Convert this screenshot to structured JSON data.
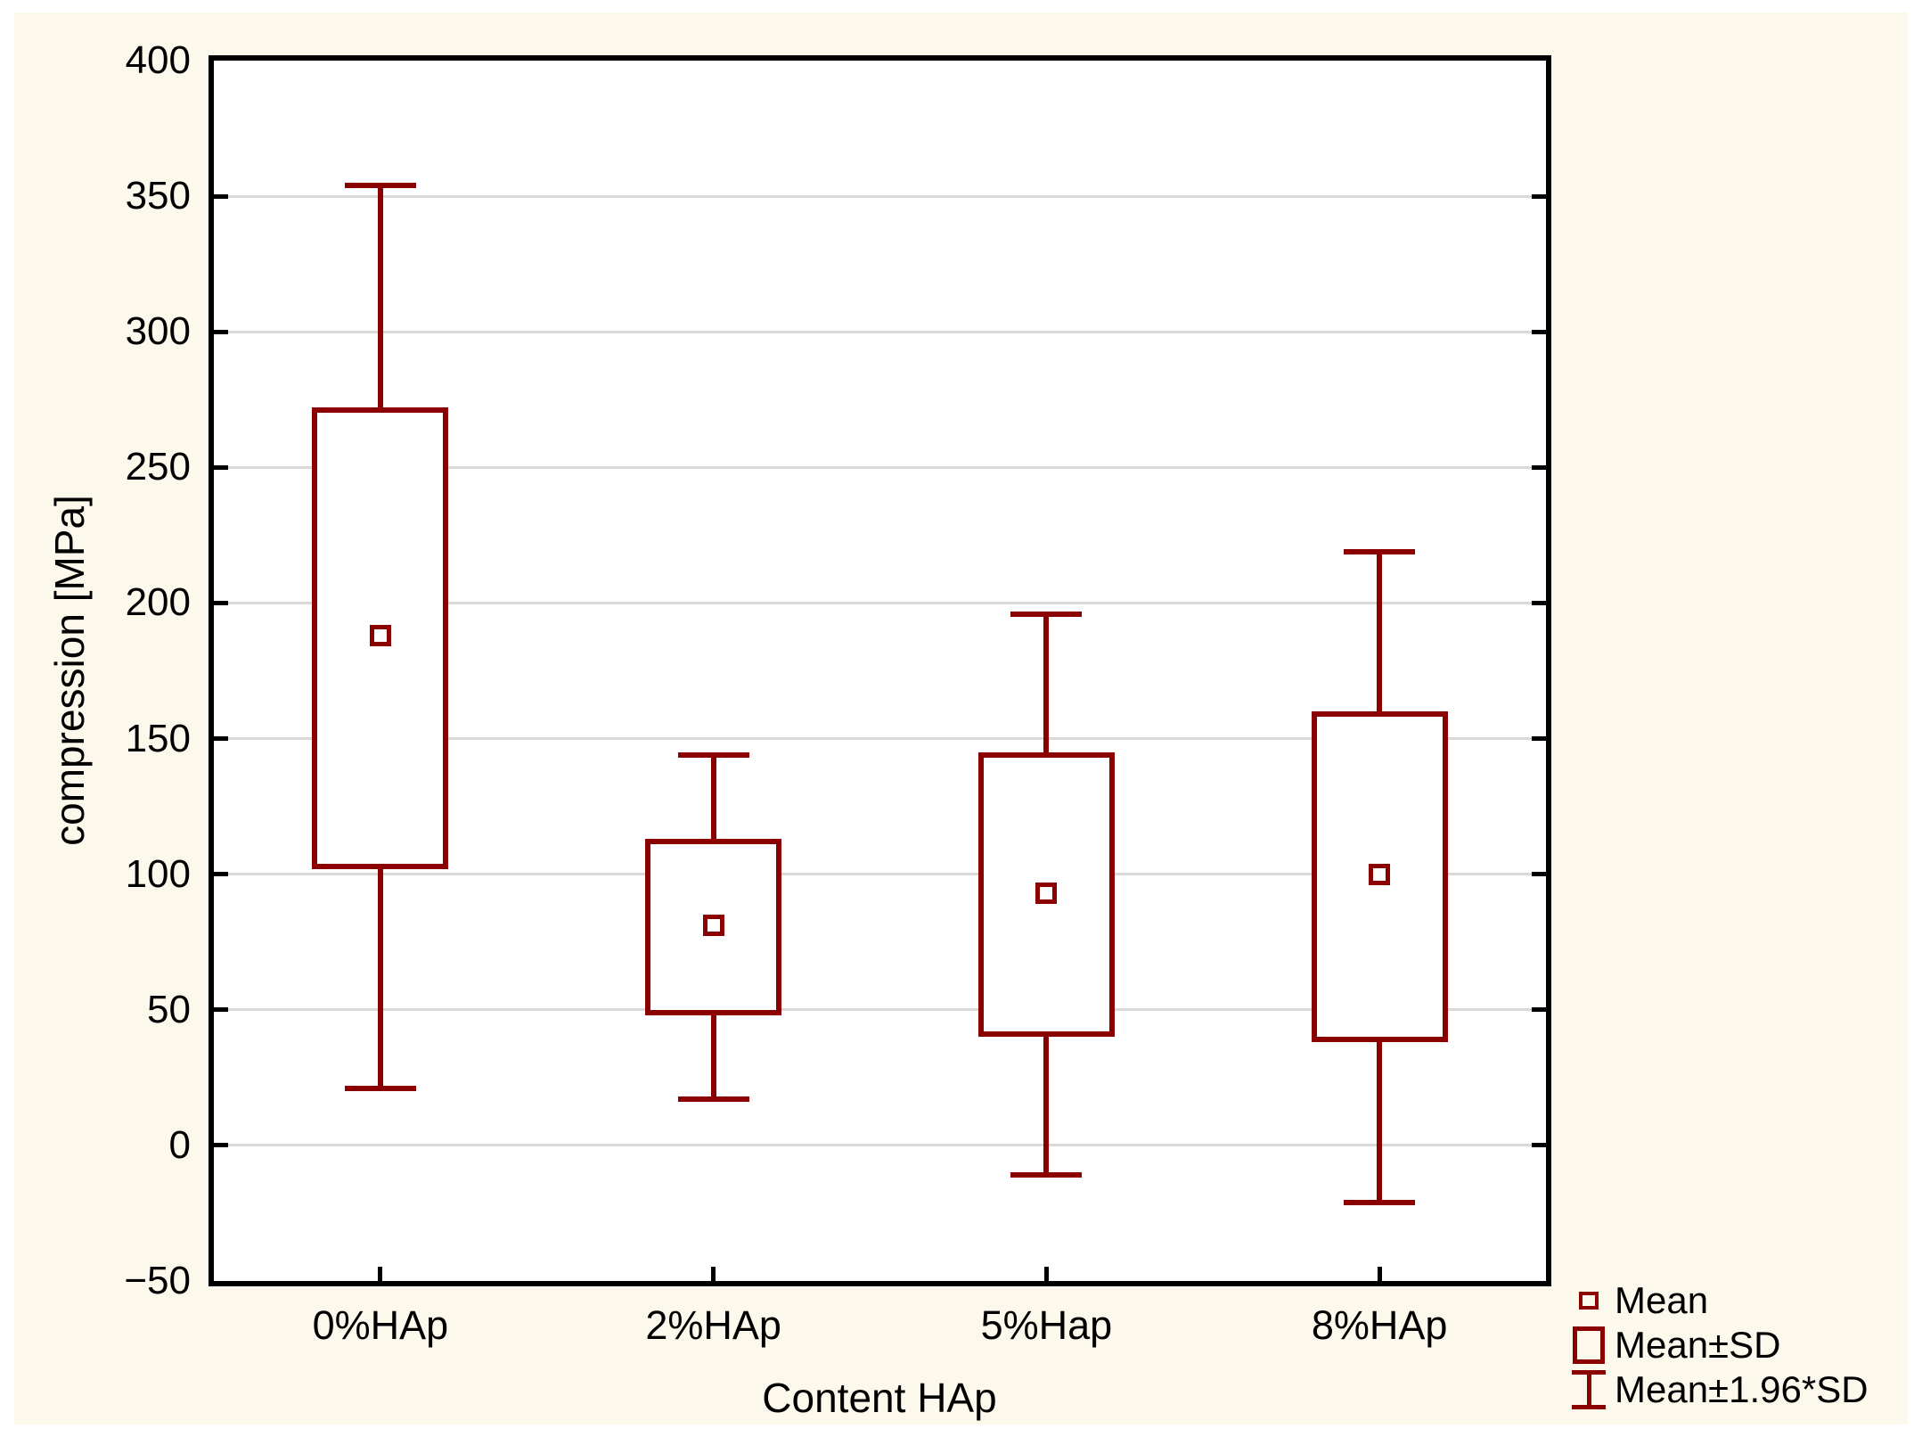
{
  "figure": {
    "page_background": "#FFFFFF",
    "panel_background": "#FDF8EC",
    "plot_background": "#FFFFFF",
    "frame_color": "#000000",
    "gridline_color": "#D9D9D9",
    "series_color": "#8B0000",
    "text_color": "#000000"
  },
  "chart_data": {
    "type": "box",
    "title": "",
    "xlabel": "Content HAp",
    "ylabel": "compression [MPa]",
    "ylim": [
      -50,
      400
    ],
    "yticks": [
      400,
      350,
      300,
      250,
      200,
      150,
      100,
      50,
      0,
      -50
    ],
    "ytick_labels": [
      "400",
      "350",
      "300",
      "250",
      "200",
      "150",
      "100",
      "50",
      "0",
      "−50"
    ],
    "categories": [
      "0%HAp",
      "2%HAp",
      "5%Hap",
      "8%HAp"
    ],
    "center_statistic": "Mean",
    "box_statistic": "Mean±SD",
    "whisker_statistic": "Mean±1.96*SD",
    "series": [
      {
        "category": "0%HAp",
        "mean": 188,
        "box_low": 102,
        "box_high": 272,
        "whisker_low": 21,
        "whisker_high": 354
      },
      {
        "category": "2%HAp",
        "mean": 81,
        "box_low": 48,
        "box_high": 113,
        "whisker_low": 17,
        "whisker_high": 144
      },
      {
        "category": "5%Hap",
        "mean": 93,
        "box_low": 40,
        "box_high": 145,
        "whisker_low": -11,
        "whisker_high": 196
      },
      {
        "category": "8%HAp",
        "mean": 100,
        "box_low": 38,
        "box_high": 160,
        "whisker_low": -21,
        "whisker_high": 219
      }
    ],
    "grid": "horizontal",
    "legend_position": "bottom-right",
    "legend": [
      {
        "marker": "small-square",
        "label": "Mean"
      },
      {
        "marker": "box",
        "label": "Mean±SD"
      },
      {
        "marker": "whisker",
        "label": "Mean±1.96*SD"
      }
    ]
  }
}
